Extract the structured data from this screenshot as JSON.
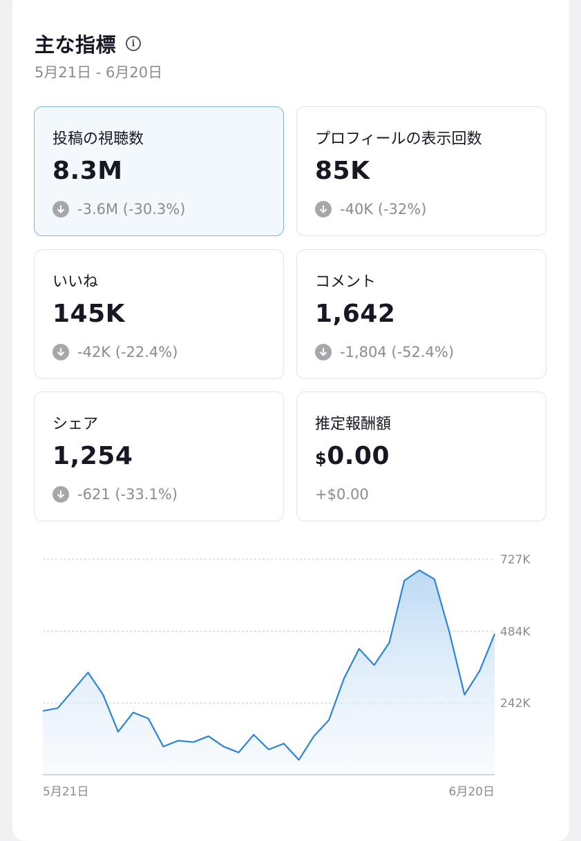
{
  "header": {
    "title": "主な指標",
    "info_icon": "info-icon",
    "date_range": "5月21日 - 6月20日"
  },
  "metrics": [
    {
      "label": "投稿の視聴数",
      "value": "8.3M",
      "change": "-3.6M (-30.3%)",
      "selected": true
    },
    {
      "label": "プロフィールの表示回数",
      "value": "85K",
      "change": "-40K (-32%)"
    },
    {
      "label": "いいね",
      "value": "145K",
      "change": "-42K (-22.4%)"
    },
    {
      "label": "コメント",
      "value": "1,642",
      "change": "-1,804 (-52.4%)"
    },
    {
      "label": "シェア",
      "value": "1,254",
      "change": "-621 (-33.1%)"
    },
    {
      "label": "推定報酬額",
      "currency": "$",
      "value": "0.00",
      "change": "+$0.00"
    }
  ],
  "colors": {
    "accent_line": "#2b84d8",
    "selected_card_bg": "#f3f8fd",
    "selected_card_border": "#7fb5df",
    "muted_text": "#8a8b91"
  },
  "chart_data": {
    "type": "area",
    "series": [
      {
        "values": [
          215000,
          225000,
          285000,
          345000,
          270000,
          145000,
          210000,
          190000,
          95000,
          115000,
          110000,
          130000,
          95000,
          75000,
          135000,
          85000,
          105000,
          50000,
          130000,
          185000,
          325000,
          425000,
          370000,
          445000,
          655000,
          690000,
          660000,
          480000,
          270000,
          350000,
          475000
        ]
      }
    ],
    "y_ticks": [
      "727K",
      "484K",
      "242K"
    ],
    "ylim": [
      0,
      727000
    ],
    "x_labels": [
      "5月21日",
      "6月20日"
    ],
    "grid": true
  }
}
